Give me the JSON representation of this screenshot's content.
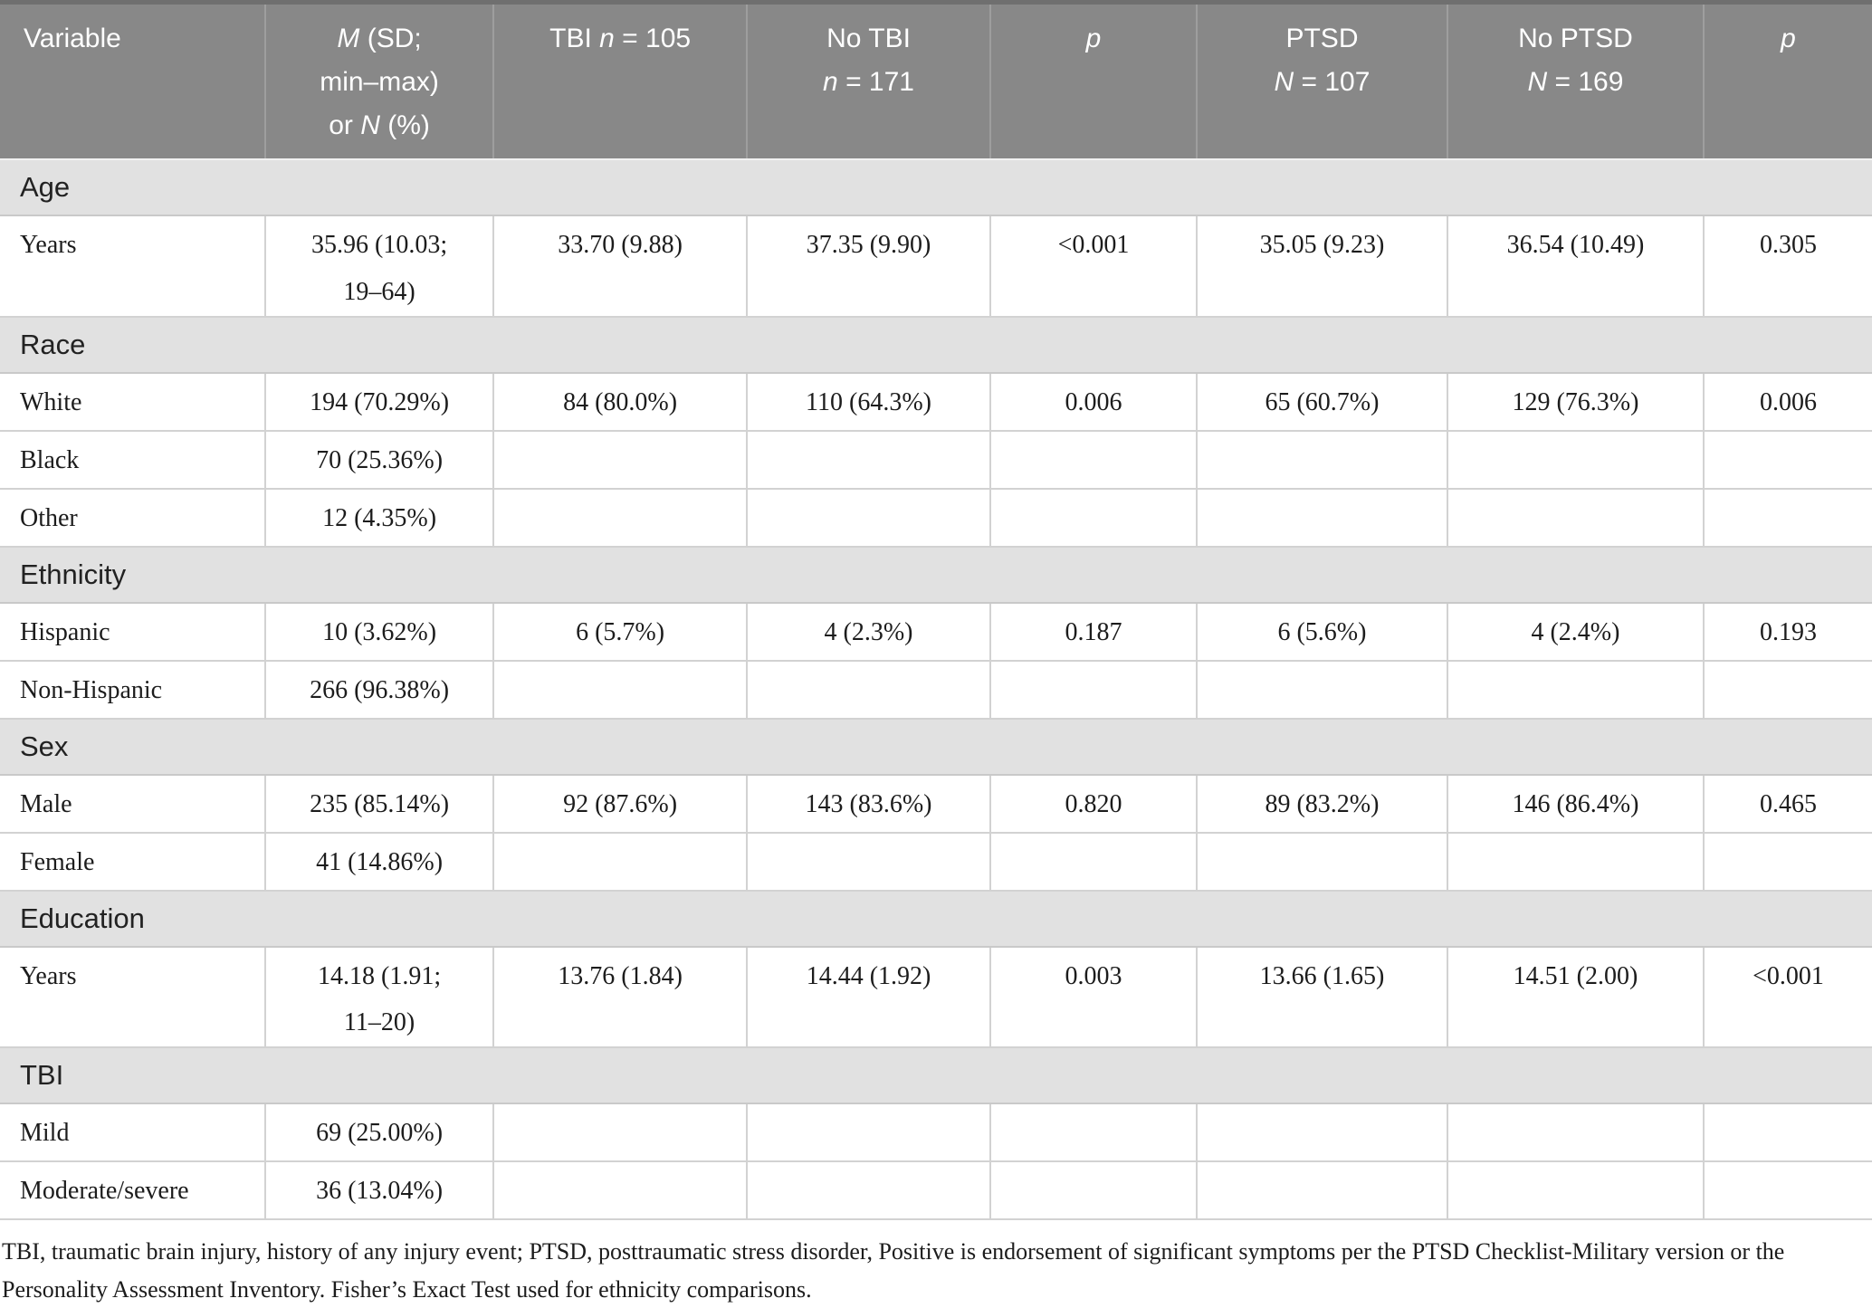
{
  "colors": {
    "header_bg": "#888888",
    "header_top_strip": "#6f6f6f",
    "header_text": "#ffffff",
    "section_bg": "#e1e1e1",
    "cell_border": "#d2d2d2"
  },
  "table": {
    "header": {
      "columns": [
        {
          "name": "variable",
          "segments": [
            {
              "text": "Variable"
            }
          ]
        },
        {
          "name": "m-sd-or-n",
          "segments": [
            {
              "text": "M",
              "italic": true
            },
            {
              "text": " (SD;\nmin–max)\nor "
            },
            {
              "text": "N",
              "italic": true
            },
            {
              "text": " (%)"
            }
          ]
        },
        {
          "name": "tbi-group",
          "segments": [
            {
              "text": "TBI "
            },
            {
              "text": "n",
              "italic": true
            },
            {
              "text": " = 105"
            }
          ]
        },
        {
          "name": "no-tbi-group",
          "segments": [
            {
              "text": "No TBI\n"
            },
            {
              "text": "n",
              "italic": true
            },
            {
              "text": " = 171"
            }
          ]
        },
        {
          "name": "p-tbi",
          "segments": [
            {
              "text": "p",
              "italic": true
            }
          ]
        },
        {
          "name": "ptsd-group",
          "segments": [
            {
              "text": "PTSD\n"
            },
            {
              "text": "N",
              "italic": true
            },
            {
              "text": " = 107"
            }
          ]
        },
        {
          "name": "no-ptsd-group",
          "segments": [
            {
              "text": "No PTSD\n"
            },
            {
              "text": "N",
              "italic": true
            },
            {
              "text": " = 169"
            }
          ]
        },
        {
          "name": "p-ptsd",
          "segments": [
            {
              "text": "p",
              "italic": true
            }
          ]
        }
      ]
    },
    "sections": [
      {
        "title": "Age",
        "rows": [
          {
            "label": "Years",
            "cells": [
              "35.96 (10.03;\n19–64)",
              "33.70 (9.88)",
              "37.35 (9.90)",
              "<0.001",
              "35.05 (9.23)",
              "36.54 (10.49)",
              "0.305"
            ]
          }
        ]
      },
      {
        "title": "Race",
        "rows": [
          {
            "label": "White",
            "cells": [
              "194 (70.29%)",
              "84 (80.0%)",
              "110 (64.3%)",
              "0.006",
              "65 (60.7%)",
              "129 (76.3%)",
              "0.006"
            ]
          },
          {
            "label": "Black",
            "cells": [
              "70 (25.36%)",
              "",
              "",
              "",
              "",
              "",
              ""
            ]
          },
          {
            "label": "Other",
            "cells": [
              "12 (4.35%)",
              "",
              "",
              "",
              "",
              "",
              ""
            ]
          }
        ]
      },
      {
        "title": "Ethnicity",
        "rows": [
          {
            "label": "Hispanic",
            "cells": [
              "10 (3.62%)",
              "6 (5.7%)",
              "4 (2.3%)",
              "0.187",
              "6 (5.6%)",
              "4 (2.4%)",
              "0.193"
            ]
          },
          {
            "label": "Non-Hispanic",
            "cells": [
              "266 (96.38%)",
              "",
              "",
              "",
              "",
              "",
              ""
            ]
          }
        ]
      },
      {
        "title": "Sex",
        "rows": [
          {
            "label": "Male",
            "cells": [
              "235 (85.14%)",
              "92 (87.6%)",
              "143 (83.6%)",
              "0.820",
              "89 (83.2%)",
              "146 (86.4%)",
              "0.465"
            ]
          },
          {
            "label": "Female",
            "cells": [
              "41 (14.86%)",
              "",
              "",
              "",
              "",
              "",
              ""
            ]
          }
        ]
      },
      {
        "title": "Education",
        "rows": [
          {
            "label": "Years",
            "cells": [
              "14.18 (1.91;\n11–20)",
              "13.76 (1.84)",
              "14.44 (1.92)",
              "0.003",
              "13.66 (1.65)",
              "14.51 (2.00)",
              "<0.001"
            ]
          }
        ]
      },
      {
        "title": "TBI",
        "rows": [
          {
            "label": "Mild",
            "cells": [
              "69 (25.00%)",
              "",
              "",
              "",
              "",
              "",
              ""
            ]
          },
          {
            "label": "Moderate/severe",
            "cells": [
              "36 (13.04%)",
              "",
              "",
              "",
              "",
              "",
              ""
            ]
          }
        ]
      }
    ],
    "footnote": "TBI, traumatic brain injury, history of any injury event; PTSD, posttraumatic stress disorder, Positive is endorsement of significant symptoms per the PTSD Checklist-Military version or the Personality Assessment Inventory. Fisher’s Exact Test used for ethnicity comparisons."
  }
}
